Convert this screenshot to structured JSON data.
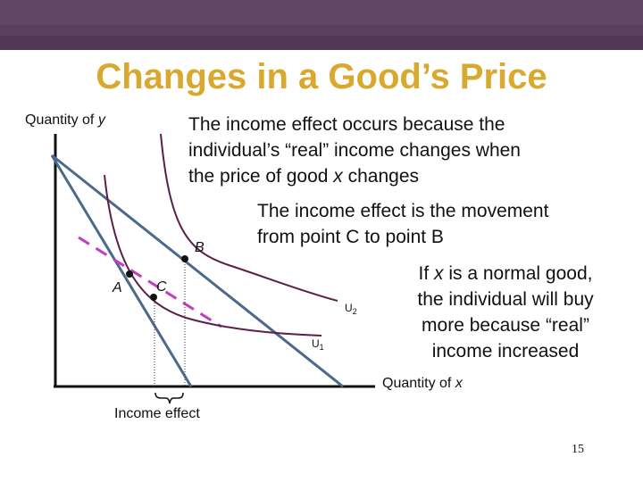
{
  "slide": {
    "title": "Changes in a Good’s Price",
    "page_number": "15"
  },
  "axes": {
    "y_label_prefix": "Quantity of ",
    "y_label_var": "y",
    "x_label_prefix": "Quantity of ",
    "x_label_var": "x"
  },
  "points": {
    "a": "A",
    "b": "B",
    "c": "C"
  },
  "curves": {
    "u1": {
      "base": "U",
      "sub": "1"
    },
    "u2": {
      "base": "U",
      "sub": "2"
    }
  },
  "income_effect_label": "Income effect",
  "annotations": {
    "note1": {
      "line1": "The income effect occurs because the",
      "line2": "individual’s “real” income changes when",
      "line3_pre": "the price of good ",
      "line3_var": "x",
      "line3_post": " changes"
    },
    "note2": {
      "line1": "The income effect is the movement",
      "line2": "from point C to point B"
    },
    "note3": {
      "line1_pre": "If ",
      "line1_var": "x",
      "line1_post": " is a normal good,",
      "line2": "the individual will buy",
      "line3": "more because “real”",
      "line4": "income increased"
    }
  },
  "colors": {
    "title": "#d9a82e",
    "banner": "#5a3f5f",
    "budget_lines": "#4a6a8c",
    "compensated_line": "#c43cc0",
    "curves": "#5a1f4a"
  }
}
